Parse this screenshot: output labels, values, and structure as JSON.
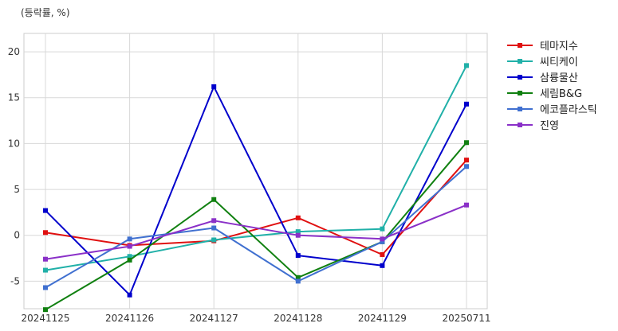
{
  "chart_data": {
    "type": "line",
    "ylabel": "(등락률, %)",
    "categories": [
      "20241125",
      "20241126",
      "20241127",
      "20241128",
      "20241129",
      "20250711"
    ],
    "ylim": [
      -8,
      22
    ],
    "yticks": [
      -5,
      0,
      5,
      10,
      15,
      20
    ],
    "ytick_labels": [
      "-5",
      "0",
      "5",
      "10",
      "15",
      "20"
    ],
    "grid": true,
    "legend_position": "outside-right-top",
    "series": [
      {
        "name": "테마지수",
        "color": "#e01010",
        "values": [
          0.3,
          -1.1,
          -0.6,
          1.9,
          -2.1,
          8.2
        ]
      },
      {
        "name": "씨티케이",
        "color": "#20b0a8",
        "values": [
          -3.8,
          -2.3,
          -0.5,
          0.4,
          0.7,
          18.5
        ]
      },
      {
        "name": "삼륭물산",
        "color": "#0000cc",
        "values": [
          2.7,
          -6.5,
          16.2,
          -2.2,
          -3.3,
          14.3
        ]
      },
      {
        "name": "세림B&G",
        "color": "#108010",
        "values": [
          -8.1,
          -2.7,
          3.9,
          -4.6,
          -0.7,
          10.1
        ]
      },
      {
        "name": "에코플라스틱",
        "color": "#4070d0",
        "values": [
          -5.7,
          -0.4,
          0.8,
          -5.0,
          -0.7,
          7.5
        ]
      },
      {
        "name": "진영",
        "color": "#8a30c8",
        "values": [
          -2.6,
          -1.2,
          1.6,
          0.0,
          -0.4,
          3.3
        ]
      }
    ]
  }
}
